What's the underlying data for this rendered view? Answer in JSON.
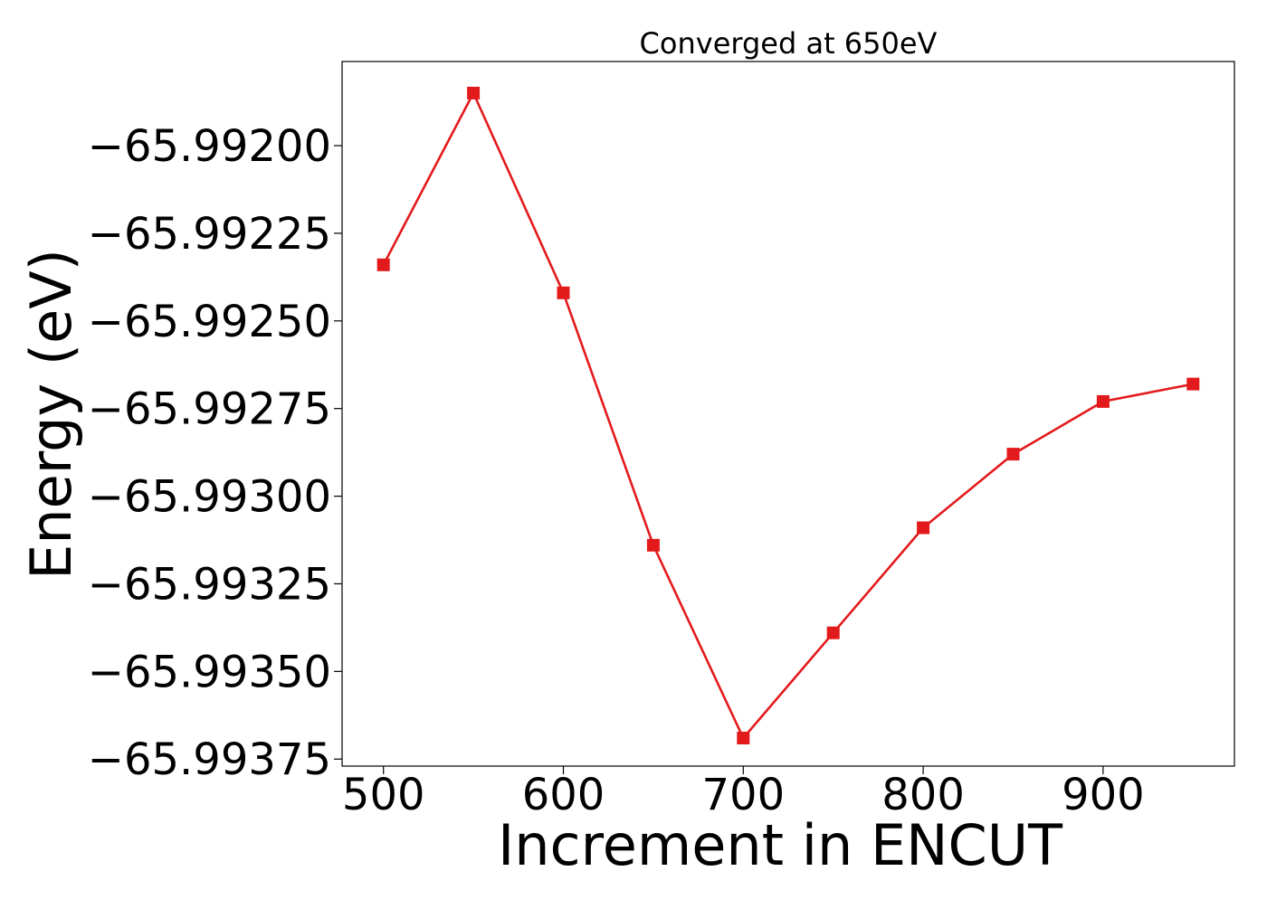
{
  "chart_data": {
    "type": "line",
    "title": "Converged at 650eV",
    "xlabel": "Increment in ENCUT",
    "ylabel": "Energy (eV)",
    "x": [
      500,
      550,
      600,
      650,
      700,
      750,
      800,
      850,
      900,
      950
    ],
    "series": [
      {
        "values": [
          -65.99234,
          -65.99185,
          -65.99242,
          -65.99314,
          -65.99369,
          -65.99339,
          -65.99309,
          -65.99288,
          -65.99273,
          -65.99268
        ],
        "color": "#e31a1c",
        "marker": "square"
      }
    ],
    "xlim": [
      477,
      973
    ],
    "ylim": [
      -65.99377,
      -65.99176
    ],
    "xticks": [
      500,
      600,
      700,
      800,
      900
    ],
    "yticks": [
      -65.992,
      -65.99225,
      -65.9925,
      -65.99275,
      -65.993,
      -65.99325,
      -65.9935,
      -65.99375
    ],
    "xtick_labels": [
      "500",
      "600",
      "700",
      "800",
      "900"
    ],
    "ytick_labels": [
      "−65.99200",
      "−65.99225",
      "−65.99250",
      "−65.99275",
      "−65.99300",
      "−65.99325",
      "−65.99350",
      "−65.99375"
    ],
    "grid": false,
    "legend": "none"
  }
}
